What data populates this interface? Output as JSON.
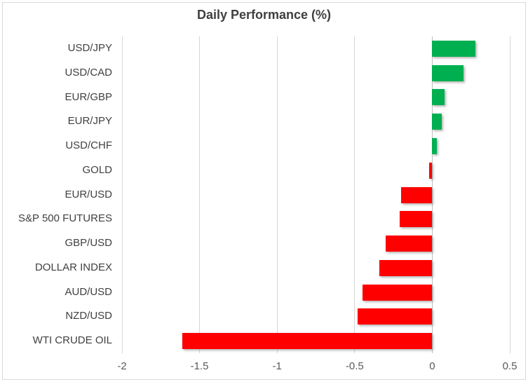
{
  "chart_data": {
    "type": "bar",
    "orientation": "horizontal",
    "title": "Daily Performance (%)",
    "categories": [
      "USD/JPY",
      "USD/CAD",
      "EUR/GBP",
      "EUR/JPY",
      "USD/CHF",
      "GOLD",
      "EUR/USD",
      "S&P 500 FUTURES",
      "GBP/USD",
      "DOLLAR INDEX",
      "AUD/USD",
      "NZD/USD",
      "WTI CRUDE OIL"
    ],
    "values": [
      0.28,
      0.2,
      0.08,
      0.06,
      0.03,
      -0.02,
      -0.2,
      -0.21,
      -0.3,
      -0.34,
      -0.45,
      -0.48,
      -1.61
    ],
    "xlabel": "",
    "ylabel": "",
    "xlim": [
      -2,
      0.5
    ],
    "xticks": [
      -2,
      -1.5,
      -1,
      -0.5,
      0,
      0.5
    ],
    "xtick_labels": [
      "-2",
      "-1.5",
      "-1",
      "-0.5",
      "0",
      "0.5"
    ],
    "grid": true,
    "legend": false,
    "colors": {
      "positive": "#00B050",
      "negative": "#FF0000",
      "gridline": "#D6D6D6",
      "zero_axis": "#BFBFBF",
      "title": "#3F3F3F",
      "category_label": "#404040",
      "tick_label": "#595959"
    }
  }
}
